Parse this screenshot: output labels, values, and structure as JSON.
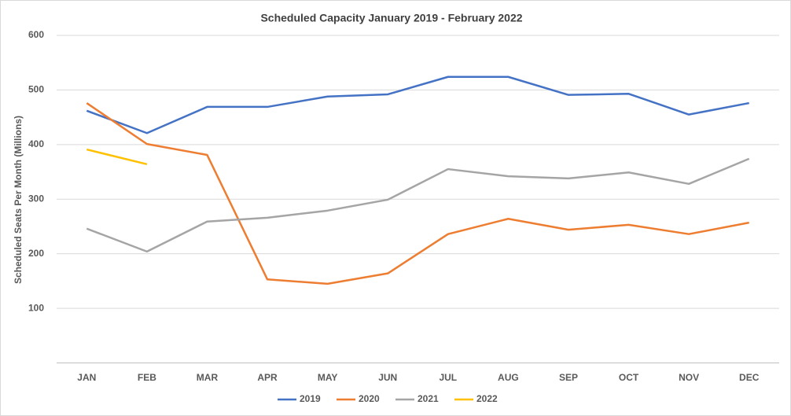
{
  "chart_data": {
    "type": "line",
    "title": "Scheduled Capacity January 2019   - February 2022",
    "y_label": "Scheduled Seats Per Month (Millions)",
    "categories": [
      "JAN",
      "FEB",
      "MAR",
      "APR",
      "MAY",
      "JUN",
      "JUL",
      "AUG",
      "SEP",
      "OCT",
      "NOV",
      "DEC"
    ],
    "series": [
      {
        "name": "2019",
        "color": "#4472c4",
        "values": [
          462,
          421,
          469,
          469,
          488,
          492,
          524,
          524,
          491,
          493,
          455,
          476
        ]
      },
      {
        "name": "2020",
        "color": "#ed7d31",
        "values": [
          476,
          401,
          381,
          153,
          145,
          164,
          236,
          264,
          244,
          253,
          236,
          257
        ]
      },
      {
        "name": "2021",
        "color": "#a5a5a5",
        "values": [
          246,
          204,
          259,
          266,
          279,
          299,
          355,
          342,
          338,
          349,
          328,
          374
        ]
      },
      {
        "name": "2022",
        "color": "#ffc000",
        "values": [
          391,
          364,
          null,
          null,
          null,
          null,
          null,
          null,
          null,
          null,
          null,
          null
        ]
      }
    ],
    "ylim": [
      0,
      600
    ],
    "yticks": [
      100,
      200,
      300,
      400,
      500,
      600
    ],
    "grid": true,
    "legend": "bottom"
  }
}
